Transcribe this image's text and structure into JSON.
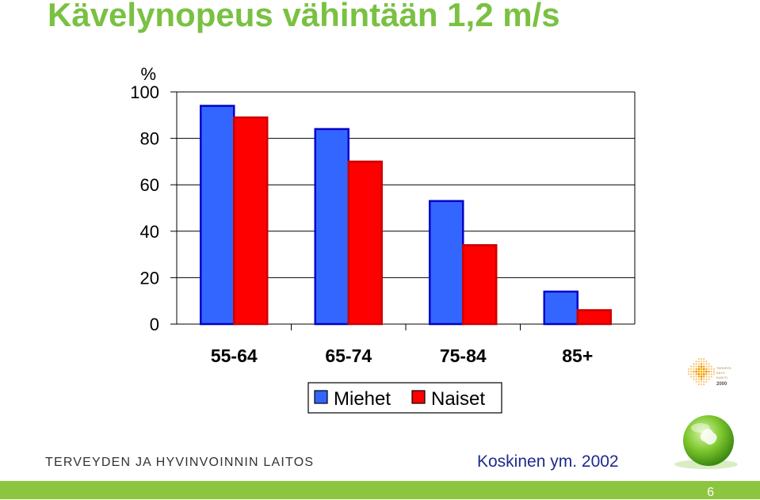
{
  "title": "Kävelynopeus vähintään 1,2 m/s",
  "chart_data": {
    "type": "bar",
    "ylabel": "%",
    "ylim": [
      0,
      100
    ],
    "yticks": [
      "0",
      "20",
      "40",
      "60",
      "80",
      "100"
    ],
    "categories": [
      "55-64",
      "65-74",
      "75-84",
      "85+"
    ],
    "series": [
      {
        "name": "Miehet",
        "color": "#3366ff",
        "values": [
          94,
          84,
          53,
          14
        ]
      },
      {
        "name": "Naiset",
        "color": "#ff0000",
        "values": [
          89,
          70,
          34,
          6
        ]
      }
    ],
    "grid": true,
    "legend": "bottom-center"
  },
  "footer": {
    "organization": "TERVEYDEN JA HYVINVOINNIN LAITOS",
    "citation": "Koskinen ym. 2002",
    "page_number": "6"
  },
  "logo": {
    "text_lines": [
      "TERVEYS",
      "KÄYS",
      "KUNTO",
      "2000"
    ],
    "globe_icon": "green-globe-icon"
  },
  "colors": {
    "title": "#7ac142",
    "footer_bar": "#8cc63f",
    "citation": "#1f2a8c"
  }
}
